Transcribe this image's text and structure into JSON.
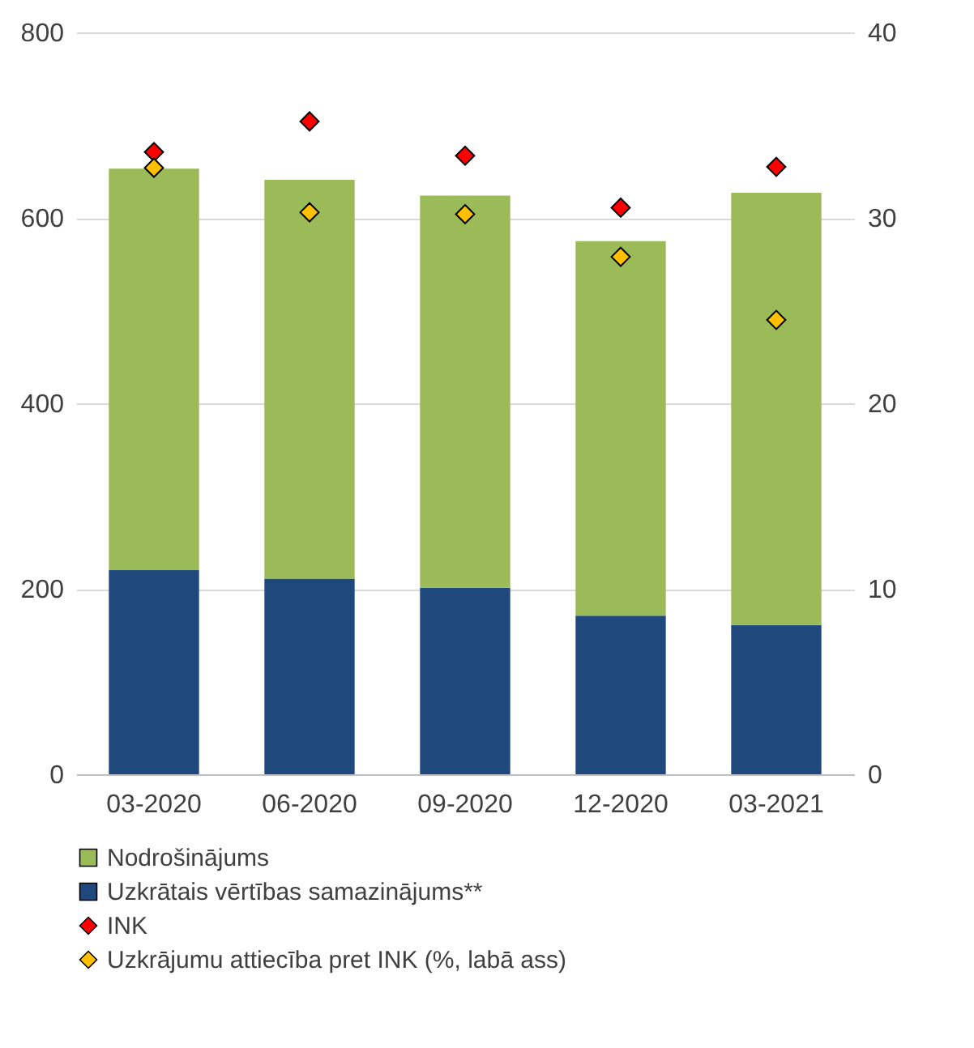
{
  "chart_data": {
    "type": "bar",
    "stacked": true,
    "categories": [
      "03-2020",
      "06-2020",
      "09-2020",
      "12-2020",
      "03-2021"
    ],
    "series": [
      {
        "name": "Uzkrātais vērtības samazinājums**",
        "color": "#1f497d",
        "values": [
          220,
          211,
          201,
          171,
          161
        ]
      },
      {
        "name": "Nodrošinājums",
        "color": "#9bbb59",
        "values": [
          433,
          430,
          423,
          404,
          466
        ]
      },
      {
        "name": "INK",
        "type": "scatter",
        "color": "#ff0000",
        "marker": "diamond",
        "values": [
          671,
          704,
          667,
          611,
          655
        ]
      },
      {
        "name": "Uzkrājumu attiecība pret INK (%, labā ass)",
        "type": "scatter",
        "axis": "y2",
        "color": "#ffc000",
        "marker": "diamond",
        "values": [
          32.7,
          30.3,
          30.2,
          27.9,
          24.5
        ]
      }
    ],
    "ylim": [
      0,
      800
    ],
    "yticks": [
      0,
      200,
      400,
      600,
      800
    ],
    "y2lim": [
      0,
      40
    ],
    "y2ticks": [
      0,
      10,
      20,
      30,
      40
    ],
    "grid": "y",
    "legend": "bottom"
  }
}
